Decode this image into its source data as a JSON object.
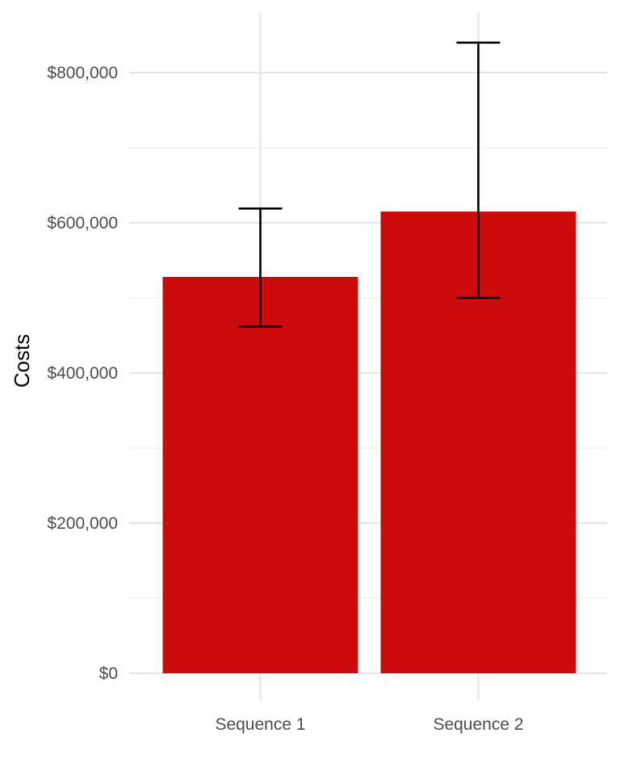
{
  "chart_data": {
    "type": "bar",
    "categories": [
      "Sequence 1",
      "Sequence 2"
    ],
    "values": [
      528000,
      615000
    ],
    "error_bars": [
      {
        "lower": 462000,
        "upper": 619000
      },
      {
        "lower": 500000,
        "upper": 840000
      }
    ],
    "xlabel": "",
    "ylabel": "Costs",
    "ylim": [
      0,
      880000
    ],
    "y_ticks": [
      0,
      200000,
      400000,
      600000,
      800000
    ],
    "y_tick_labels": [
      "$0",
      "$200,000",
      "$400,000",
      "$600,000",
      "$800,000"
    ],
    "y_minor_ticks": [
      100000,
      300000,
      500000,
      700000
    ],
    "bar_color": "#CC0C0C",
    "error_bar_color": "#000000",
    "grid": true
  }
}
